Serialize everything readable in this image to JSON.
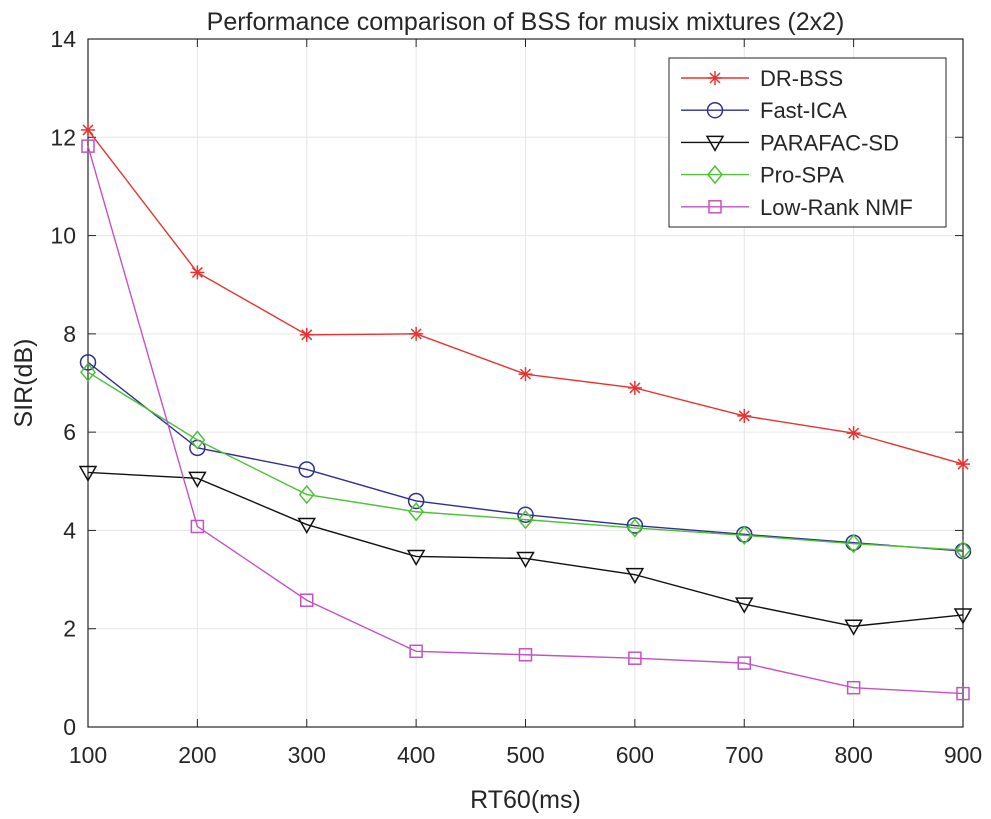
{
  "chart_data": {
    "type": "line",
    "title": "Performance comparison of BSS for musix mixtures (2x2)",
    "xlabel": "RT60(ms)",
    "ylabel": "SIR(dB)",
    "x": [
      100,
      200,
      300,
      400,
      500,
      600,
      700,
      800,
      900
    ],
    "xlim": [
      100,
      900
    ],
    "ylim": [
      0,
      14
    ],
    "xticks": [
      100,
      200,
      300,
      400,
      500,
      600,
      700,
      800,
      900
    ],
    "yticks": [
      0,
      2,
      4,
      6,
      8,
      10,
      12,
      14
    ],
    "grid": true,
    "legend_position": "top-right",
    "series": [
      {
        "name": "DR-BSS",
        "color": "#e8322f",
        "marker": "asterisk",
        "values": [
          12.15,
          9.25,
          7.98,
          8.0,
          7.18,
          6.9,
          6.33,
          5.98,
          5.35
        ]
      },
      {
        "name": "Fast-ICA",
        "color": "#2e3192",
        "marker": "circle",
        "values": [
          7.42,
          5.68,
          5.24,
          4.6,
          4.32,
          4.1,
          3.92,
          3.75,
          3.58
        ]
      },
      {
        "name": "PARAFAC-SD",
        "color": "#111111",
        "marker": "triangle-down",
        "values": [
          5.18,
          5.06,
          4.12,
          3.47,
          3.43,
          3.1,
          2.5,
          2.05,
          2.28
        ]
      },
      {
        "name": "Pro-SPA",
        "color": "#4cc234",
        "marker": "diamond",
        "values": [
          7.22,
          5.84,
          4.73,
          4.38,
          4.22,
          4.05,
          3.9,
          3.73,
          3.6
        ]
      },
      {
        "name": "Low-Rank NMF",
        "color": "#c452c4",
        "marker": "square",
        "values": [
          11.82,
          4.08,
          2.58,
          1.54,
          1.47,
          1.4,
          1.3,
          0.8,
          0.68
        ]
      }
    ]
  }
}
